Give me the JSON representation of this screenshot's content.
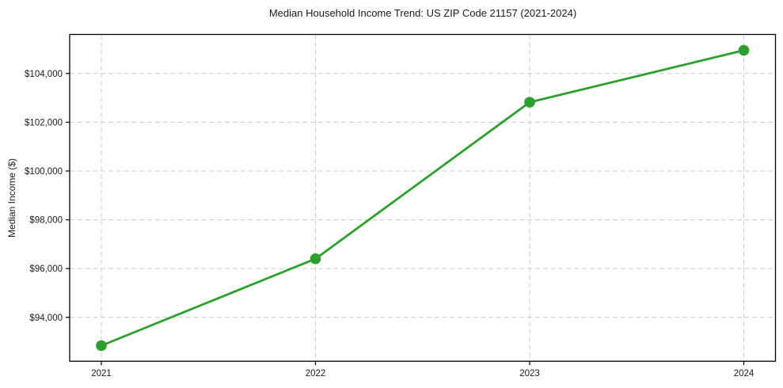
{
  "chart_data": {
    "type": "line",
    "title": "Median Household Income Trend: US ZIP Code 21157 (2021-2024)",
    "xlabel": "",
    "ylabel": "Median Income ($)",
    "x": [
      "2021",
      "2022",
      "2023",
      "2024"
    ],
    "values": [
      92840,
      96400,
      102820,
      104950
    ],
    "ylim": [
      92200,
      105600
    ],
    "yticks": [
      94000,
      96000,
      98000,
      100000,
      102000,
      104000
    ],
    "ytick_prefix": "$",
    "grid": true,
    "grid_style": "dashed",
    "legend_position": "none",
    "line_color": "#2ca02c",
    "marker_color": "#2ca02c",
    "marker_shape": "circle",
    "grid_color": "#cccccc",
    "axis_color": "#000000",
    "background_color": "#ffffff"
  }
}
